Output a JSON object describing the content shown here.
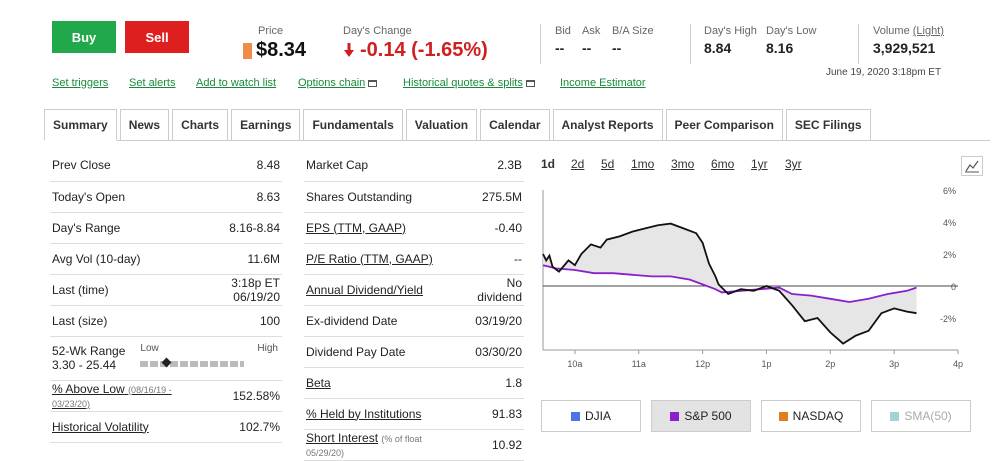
{
  "actions": {
    "buy": "Buy",
    "sell": "Sell"
  },
  "quote": {
    "price_label": "Price",
    "price": "$8.34",
    "change_label": "Day's Change",
    "change": "-0.14 (-1.65%)",
    "bid_label": "Bid",
    "bid": "--",
    "ask_label": "Ask",
    "ask": "--",
    "ba_size_label": "B/A Size",
    "ba_size": "--",
    "high_label": "Day's High",
    "high": "8.84",
    "low_label": "Day's Low",
    "low": "8.16",
    "volume_label": "Volume",
    "volume_sub": "(Light)",
    "volume": "3,929,521",
    "timestamp": "June 19, 2020 3:18pm ET"
  },
  "links": [
    "Set triggers",
    "Set alerts",
    "Add to watch list",
    "Options chain",
    "Historical quotes & splits",
    "Income Estimator"
  ],
  "tabs": [
    "Summary",
    "News",
    "Charts",
    "Earnings",
    "Fundamentals",
    "Valuation",
    "Calendar",
    "Analyst Reports",
    "Peer Comparison",
    "SEC Filings"
  ],
  "left_table": [
    {
      "label": "Prev Close",
      "value": "8.48"
    },
    {
      "label": "Today's Open",
      "value": "8.63"
    },
    {
      "label": "Day's Range",
      "value": "8.16-8.84"
    },
    {
      "label": "Avg Vol (10-day)",
      "value": "11.6M"
    },
    {
      "label": "Last (time)",
      "value": "3:18p ET 06/19/20"
    },
    {
      "label": "Last (size)",
      "value": "100"
    }
  ],
  "week52": {
    "label": "52-Wk Range",
    "range": "3.30 - 25.44",
    "low": "Low",
    "high": "High",
    "position": 0.22
  },
  "above_low": {
    "label": "% Above Low",
    "dates": "(08/16/19 - 03/23/20)",
    "value": "152.58%"
  },
  "hist_vol": {
    "label": "Historical Volatility",
    "value": "102.7%"
  },
  "mid_table": [
    {
      "label": "Market Cap",
      "value": "2.3B",
      "link": false
    },
    {
      "label": "Shares Outstanding",
      "value": "275.5M",
      "link": false
    },
    {
      "label": "EPS (TTM, GAAP)",
      "value": "-0.40",
      "link": true
    },
    {
      "label": "P/E Ratio (TTM, GAAP)",
      "value": "--",
      "link": true
    },
    {
      "label": "Annual Dividend/Yield",
      "value": "No dividend",
      "link": true
    },
    {
      "label": "Ex-dividend Date",
      "value": "03/19/20",
      "link": false
    },
    {
      "label": "Dividend Pay Date",
      "value": "03/30/20",
      "link": false
    },
    {
      "label": "Beta",
      "value": "1.8",
      "link": true
    },
    {
      "label": "% Held by Institutions",
      "value": "91.83",
      "link": true
    }
  ],
  "short_interest": {
    "label": "Short Interest",
    "note": "(% of float 05/29/20)",
    "value": "10.92"
  },
  "periods": [
    "1d",
    "2d",
    "5d",
    "1mo",
    "3mo",
    "6mo",
    "1yr",
    "3yr"
  ],
  "chart_data": {
    "type": "line",
    "x_ticks": [
      "10a",
      "11a",
      "12p",
      "1p",
      "2p",
      "3p",
      "4p"
    ],
    "y_ticks": [
      "6%",
      "4%",
      "2%",
      "0",
      "-2%"
    ],
    "ylim": [
      -4,
      6
    ],
    "series": [
      {
        "name": "stock",
        "color": "#111111",
        "x": [
          9.5,
          9.55,
          9.6,
          9.65,
          9.75,
          9.9,
          10.0,
          10.1,
          10.25,
          10.4,
          10.5,
          10.7,
          10.9,
          11.1,
          11.3,
          11.5,
          11.7,
          11.9,
          12.0,
          12.1,
          12.2,
          12.25,
          12.4,
          12.6,
          12.8,
          13.0,
          13.2,
          13.4,
          13.6,
          13.8,
          14.0,
          14.2,
          14.4,
          14.6,
          14.8,
          15.0,
          15.2,
          15.35
        ],
        "y": [
          2.0,
          1.6,
          1.9,
          1.2,
          0.9,
          1.6,
          1.3,
          2.0,
          2.6,
          2.4,
          2.9,
          3.1,
          3.4,
          3.6,
          3.8,
          3.9,
          3.6,
          3.3,
          2.7,
          1.4,
          0.6,
          0.1,
          -0.5,
          -0.2,
          -0.3,
          0.0,
          -0.3,
          -1.2,
          -2.2,
          -2.0,
          -2.9,
          -3.6,
          -3.1,
          -2.8,
          -1.7,
          -1.4,
          -1.6,
          -1.7
        ]
      },
      {
        "name": "S&P 500",
        "color": "#8b1fc9",
        "x": [
          9.5,
          9.6,
          9.7,
          10.0,
          10.3,
          10.6,
          10.9,
          11.2,
          11.5,
          11.8,
          12.0,
          12.2,
          12.3,
          12.6,
          12.9,
          13.2,
          13.4,
          13.7,
          14.0,
          14.3,
          14.6,
          14.9,
          15.2,
          15.35
        ],
        "y": [
          1.3,
          1.2,
          1.1,
          1.0,
          0.8,
          0.8,
          0.7,
          0.6,
          0.6,
          0.4,
          0.1,
          -0.2,
          -0.4,
          -0.3,
          -0.2,
          -0.1,
          -0.5,
          -0.6,
          -0.8,
          -1.0,
          -0.8,
          -0.5,
          -0.3,
          -0.1
        ]
      }
    ]
  },
  "legend": [
    {
      "name": "DJIA",
      "color": "#4f74e6",
      "active": false
    },
    {
      "name": "S&P 500",
      "color": "#8b1fc9",
      "active": true
    },
    {
      "name": "NASDAQ",
      "color": "#e07b1f",
      "active": false
    },
    {
      "name": "SMA(50)",
      "color": "#9fd3d6",
      "active": false,
      "disabled": true
    }
  ]
}
